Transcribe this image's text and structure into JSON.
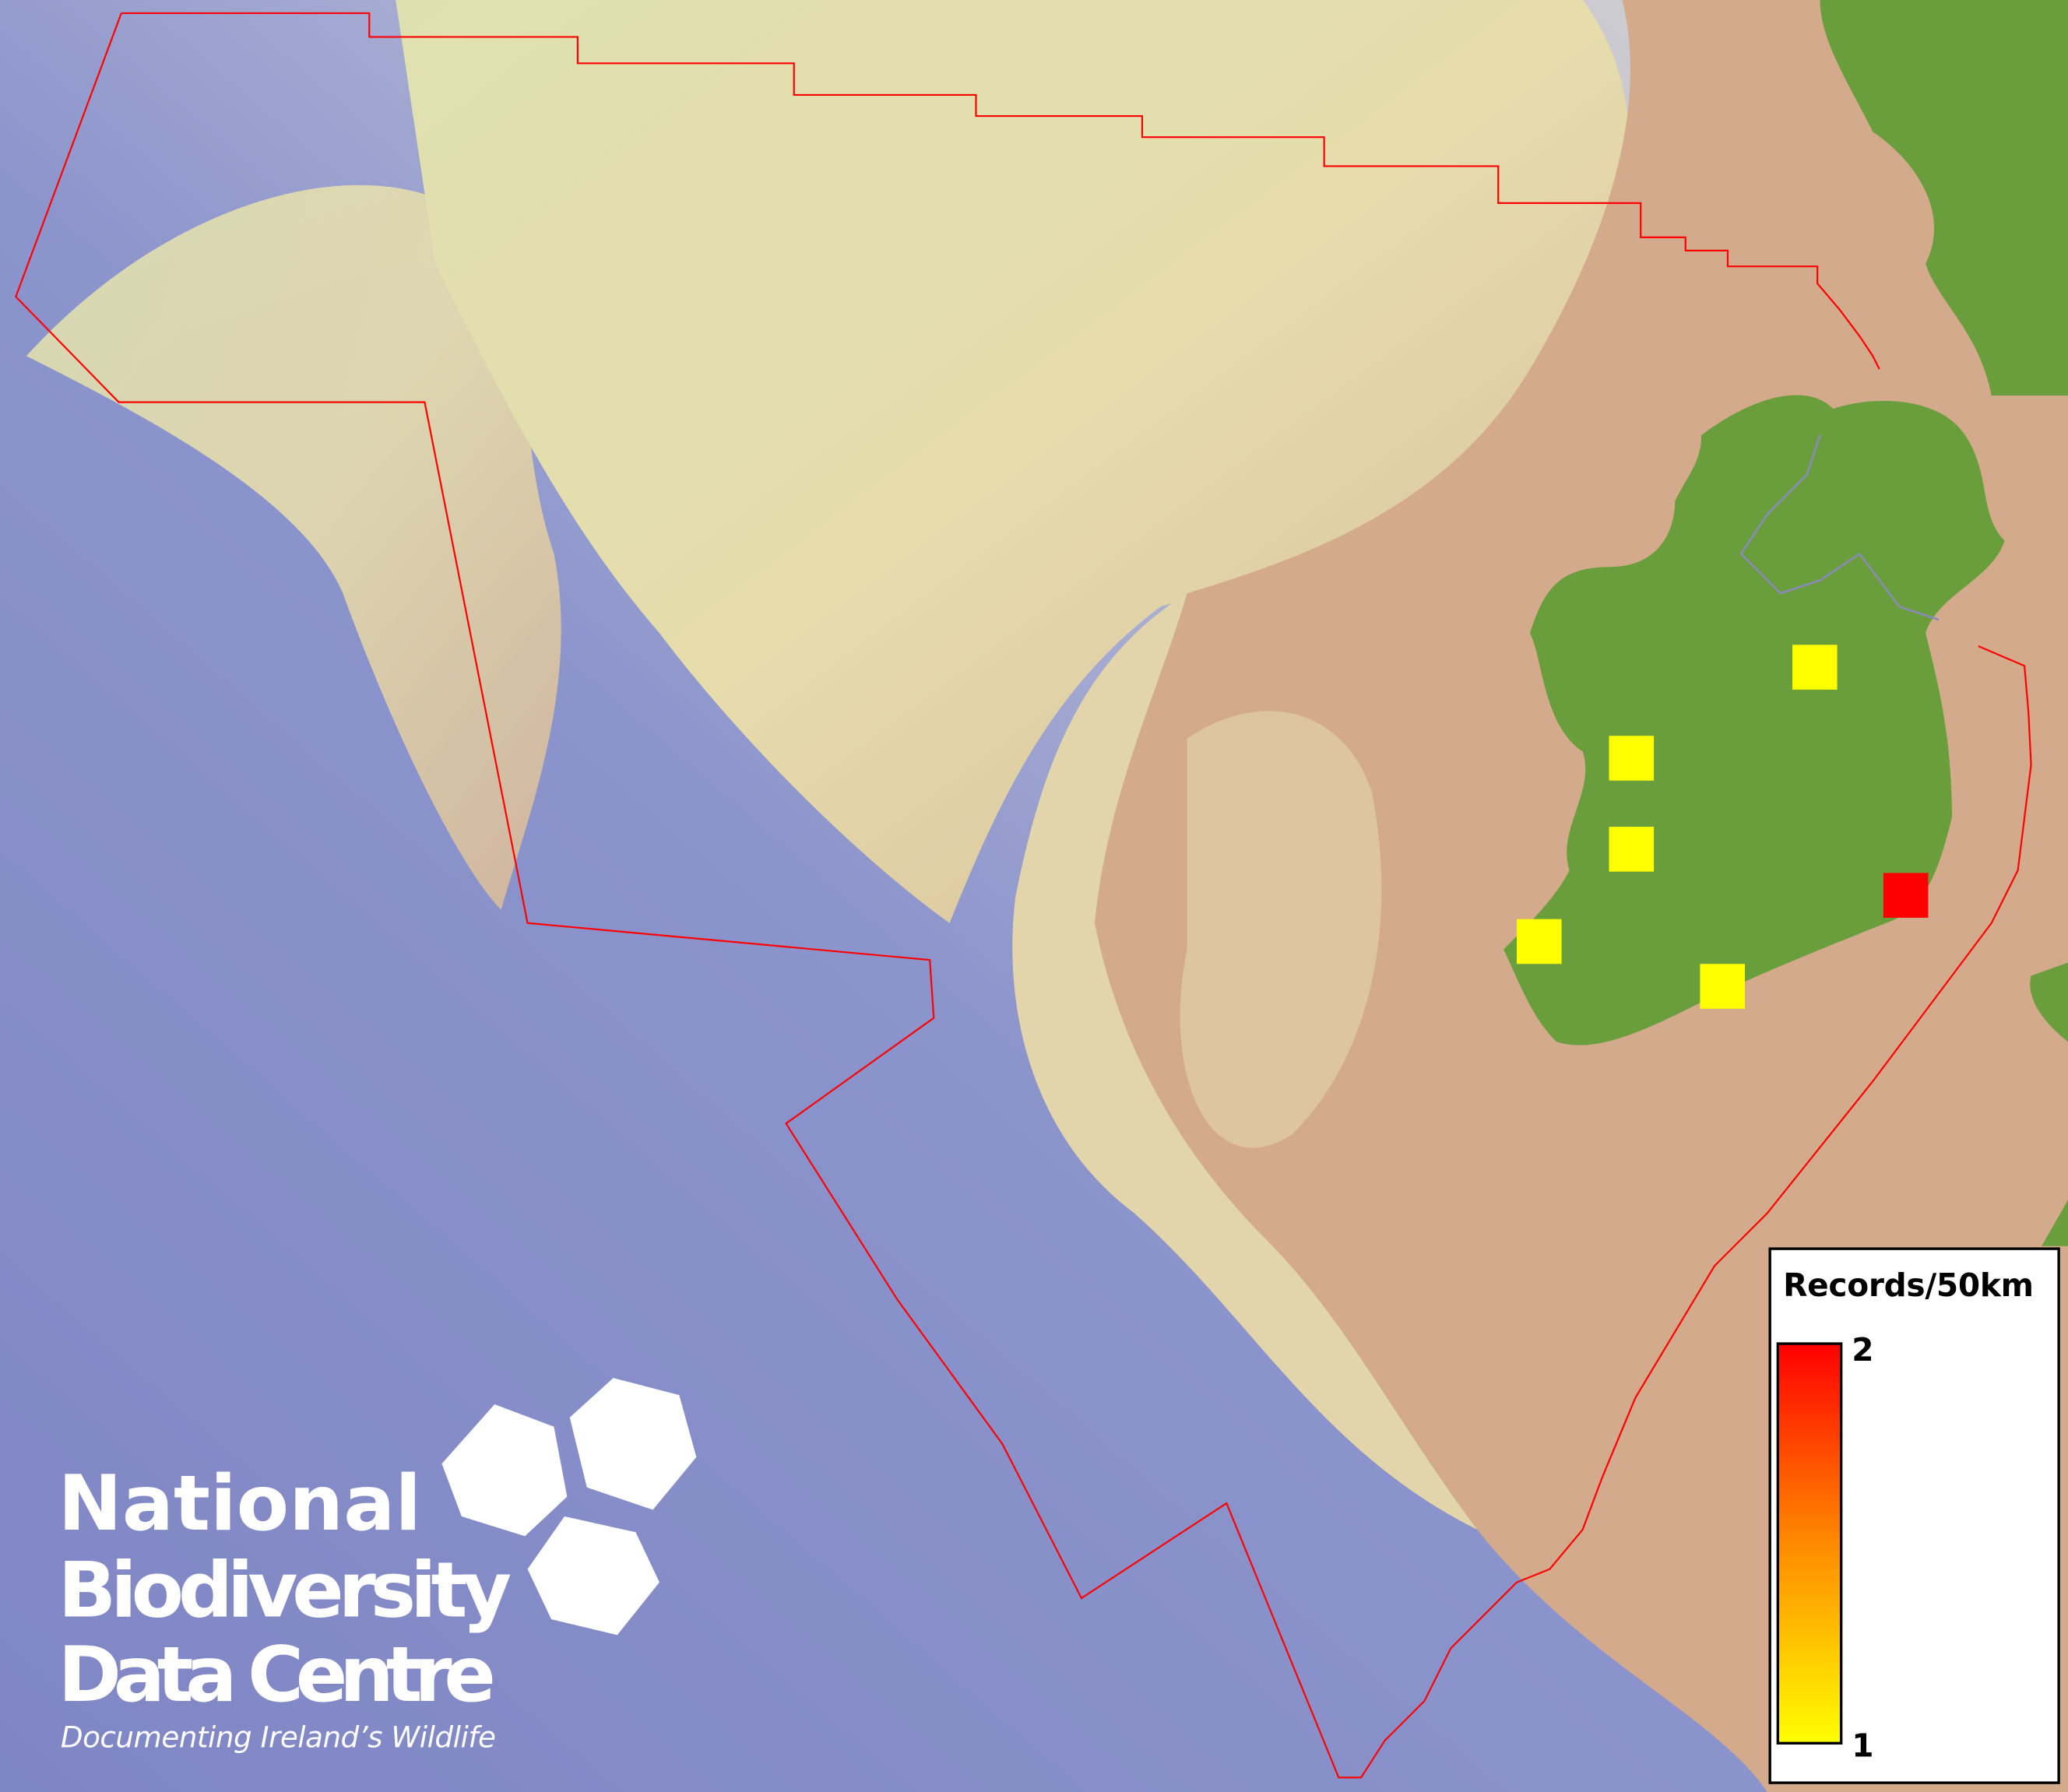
{
  "map": {
    "legend": {
      "title": "Records/50km",
      "max_label": "2",
      "min_label": "1",
      "min_color": "#ffff00",
      "max_color": "#ff0000"
    },
    "records": [
      {
        "count": 1
      },
      {
        "count": 1
      },
      {
        "count": 1
      },
      {
        "count": 1
      },
      {
        "count": 1
      },
      {
        "count": 2
      }
    ],
    "boundary_color": "#ff0000",
    "land_color": "#6a9e3c",
    "logo": {
      "line1": "National",
      "line2": "Biodiversity",
      "line3": "Data Centre",
      "tagline": "Documenting Ireland’s Wildlife"
    }
  }
}
